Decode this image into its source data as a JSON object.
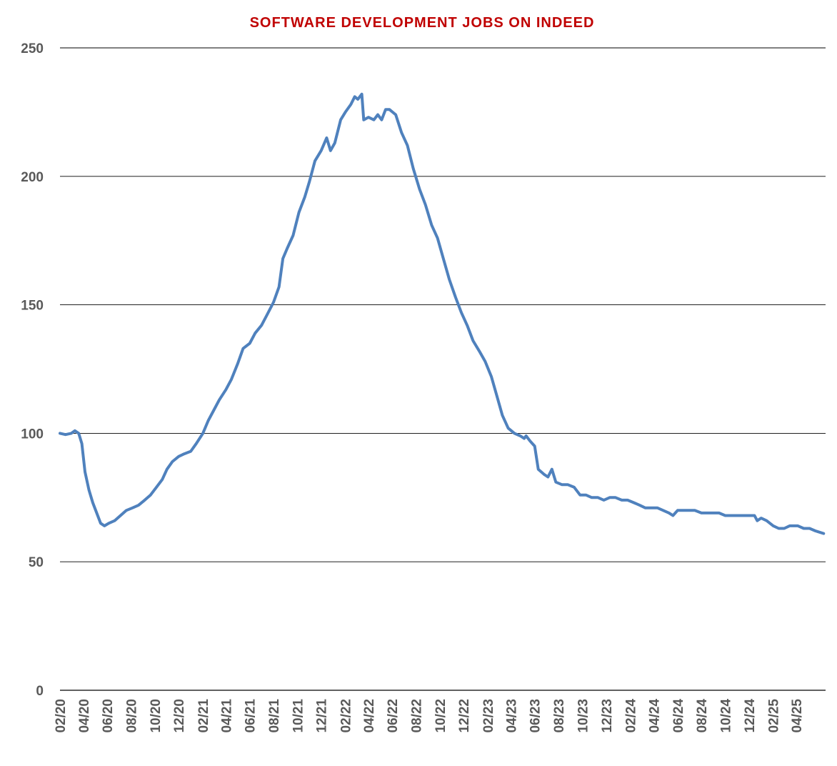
{
  "chart_data": {
    "type": "line",
    "title": "SOFTWARE DEVELOPMENT JOBS ON INDEED",
    "title_color": "#C00000",
    "line_color": "#4F81BD",
    "grid": true,
    "legend": "none",
    "ylim": [
      0,
      250
    ],
    "yticks": [
      0,
      50,
      100,
      150,
      200,
      250
    ],
    "xlim": [
      "2020-02-01",
      "2025-06-15"
    ],
    "xtick_labels": [
      "02/20",
      "04/20",
      "06/20",
      "08/20",
      "10/20",
      "12/20",
      "02/21",
      "04/21",
      "06/21",
      "08/21",
      "10/21",
      "12/21",
      "02/22",
      "04/22",
      "06/22",
      "08/22",
      "10/22",
      "12/22",
      "02/23",
      "04/23",
      "06/23",
      "08/23",
      "10/23",
      "12/23",
      "02/24",
      "04/24",
      "06/24",
      "08/24",
      "10/24",
      "12/24",
      "02/25",
      "04/25"
    ],
    "xtick_dates": [
      "2020-02-01",
      "2020-04-01",
      "2020-06-01",
      "2020-08-01",
      "2020-10-01",
      "2020-12-01",
      "2021-02-01",
      "2021-04-01",
      "2021-06-01",
      "2021-08-01",
      "2021-10-01",
      "2021-12-01",
      "2022-02-01",
      "2022-04-01",
      "2022-06-01",
      "2022-08-01",
      "2022-10-01",
      "2022-12-01",
      "2023-02-01",
      "2023-04-01",
      "2023-06-01",
      "2023-08-01",
      "2023-10-01",
      "2023-12-01",
      "2024-02-01",
      "2024-04-01",
      "2024-06-01",
      "2024-08-01",
      "2024-10-01",
      "2024-12-01",
      "2025-02-01",
      "2025-04-01"
    ],
    "series": [
      {
        "points": [
          [
            "2020-02-01",
            100
          ],
          [
            "2020-02-15",
            99.5
          ],
          [
            "2020-03-01",
            100
          ],
          [
            "2020-03-10",
            101
          ],
          [
            "2020-03-20",
            100
          ],
          [
            "2020-03-28",
            96
          ],
          [
            "2020-04-05",
            85
          ],
          [
            "2020-04-15",
            78
          ],
          [
            "2020-04-25",
            73
          ],
          [
            "2020-05-05",
            69
          ],
          [
            "2020-05-15",
            65
          ],
          [
            "2020-05-25",
            64
          ],
          [
            "2020-06-05",
            65
          ],
          [
            "2020-06-20",
            66
          ],
          [
            "2020-07-05",
            68
          ],
          [
            "2020-07-20",
            70
          ],
          [
            "2020-08-05",
            71
          ],
          [
            "2020-08-20",
            72
          ],
          [
            "2020-09-05",
            74
          ],
          [
            "2020-09-20",
            76
          ],
          [
            "2020-10-05",
            79
          ],
          [
            "2020-10-20",
            82
          ],
          [
            "2020-11-01",
            86
          ],
          [
            "2020-11-15",
            89
          ],
          [
            "2020-12-01",
            91
          ],
          [
            "2020-12-15",
            92
          ],
          [
            "2021-01-01",
            93
          ],
          [
            "2021-01-15",
            96
          ],
          [
            "2021-02-01",
            100
          ],
          [
            "2021-02-15",
            105
          ],
          [
            "2021-03-01",
            109
          ],
          [
            "2021-03-15",
            113
          ],
          [
            "2021-04-01",
            117
          ],
          [
            "2021-04-15",
            121
          ],
          [
            "2021-05-01",
            127
          ],
          [
            "2021-05-15",
            133
          ],
          [
            "2021-06-01",
            135
          ],
          [
            "2021-06-15",
            139
          ],
          [
            "2021-07-01",
            142
          ],
          [
            "2021-07-15",
            146
          ],
          [
            "2021-08-01",
            151
          ],
          [
            "2021-08-15",
            157
          ],
          [
            "2021-08-25",
            168
          ],
          [
            "2021-09-05",
            172
          ],
          [
            "2021-09-20",
            177
          ],
          [
            "2021-10-05",
            186
          ],
          [
            "2021-10-20",
            192
          ],
          [
            "2021-11-01",
            198
          ],
          [
            "2021-11-15",
            206
          ],
          [
            "2021-12-01",
            210
          ],
          [
            "2021-12-15",
            215
          ],
          [
            "2021-12-25",
            210
          ],
          [
            "2022-01-05",
            213
          ],
          [
            "2022-01-20",
            222
          ],
          [
            "2022-02-01",
            225
          ],
          [
            "2022-02-15",
            228
          ],
          [
            "2022-02-25",
            231
          ],
          [
            "2022-03-05",
            230
          ],
          [
            "2022-03-15",
            232
          ],
          [
            "2022-03-20",
            222
          ],
          [
            "2022-04-01",
            223
          ],
          [
            "2022-04-15",
            222
          ],
          [
            "2022-04-25",
            224
          ],
          [
            "2022-05-05",
            222
          ],
          [
            "2022-05-15",
            226
          ],
          [
            "2022-05-25",
            226
          ],
          [
            "2022-06-10",
            224
          ],
          [
            "2022-06-25",
            217
          ],
          [
            "2022-07-10",
            212
          ],
          [
            "2022-07-25",
            203
          ],
          [
            "2022-08-10",
            195
          ],
          [
            "2022-08-25",
            189
          ],
          [
            "2022-09-10",
            181
          ],
          [
            "2022-09-25",
            176
          ],
          [
            "2022-10-10",
            168
          ],
          [
            "2022-10-25",
            160
          ],
          [
            "2022-11-10",
            153
          ],
          [
            "2022-11-25",
            147
          ],
          [
            "2022-12-10",
            142
          ],
          [
            "2022-12-25",
            136
          ],
          [
            "2023-01-10",
            132
          ],
          [
            "2023-01-25",
            128
          ],
          [
            "2023-02-10",
            122
          ],
          [
            "2023-02-25",
            114
          ],
          [
            "2023-03-10",
            107
          ],
          [
            "2023-03-25",
            102
          ],
          [
            "2023-04-10",
            100
          ],
          [
            "2023-04-25",
            99
          ],
          [
            "2023-05-05",
            98
          ],
          [
            "2023-05-10",
            99
          ],
          [
            "2023-05-20",
            97
          ],
          [
            "2023-06-01",
            95
          ],
          [
            "2023-06-10",
            86
          ],
          [
            "2023-06-25",
            84
          ],
          [
            "2023-07-05",
            83
          ],
          [
            "2023-07-15",
            86
          ],
          [
            "2023-07-25",
            81
          ],
          [
            "2023-08-10",
            80
          ],
          [
            "2023-08-25",
            80
          ],
          [
            "2023-09-10",
            79
          ],
          [
            "2023-09-25",
            76
          ],
          [
            "2023-10-10",
            76
          ],
          [
            "2023-10-25",
            75
          ],
          [
            "2023-11-10",
            75
          ],
          [
            "2023-11-25",
            74
          ],
          [
            "2023-12-10",
            75
          ],
          [
            "2023-12-25",
            75
          ],
          [
            "2024-01-10",
            74
          ],
          [
            "2024-01-25",
            74
          ],
          [
            "2024-02-10",
            73
          ],
          [
            "2024-02-25",
            72
          ],
          [
            "2024-03-10",
            71
          ],
          [
            "2024-03-25",
            71
          ],
          [
            "2024-04-10",
            71
          ],
          [
            "2024-04-25",
            70
          ],
          [
            "2024-05-10",
            69
          ],
          [
            "2024-05-20",
            68
          ],
          [
            "2024-06-01",
            70
          ],
          [
            "2024-06-15",
            70
          ],
          [
            "2024-07-01",
            70
          ],
          [
            "2024-07-15",
            70
          ],
          [
            "2024-08-01",
            69
          ],
          [
            "2024-08-15",
            69
          ],
          [
            "2024-09-01",
            69
          ],
          [
            "2024-09-15",
            69
          ],
          [
            "2024-10-01",
            68
          ],
          [
            "2024-10-15",
            68
          ],
          [
            "2024-11-01",
            68
          ],
          [
            "2024-11-15",
            68
          ],
          [
            "2024-12-01",
            68
          ],
          [
            "2024-12-15",
            68
          ],
          [
            "2024-12-22",
            66
          ],
          [
            "2025-01-01",
            67
          ],
          [
            "2025-01-15",
            66
          ],
          [
            "2025-02-01",
            64
          ],
          [
            "2025-02-15",
            63
          ],
          [
            "2025-03-01",
            63
          ],
          [
            "2025-03-15",
            64
          ],
          [
            "2025-03-25",
            64
          ],
          [
            "2025-04-05",
            64
          ],
          [
            "2025-04-20",
            63
          ],
          [
            "2025-05-05",
            63
          ],
          [
            "2025-05-20",
            62
          ],
          [
            "2025-06-10",
            61
          ]
        ]
      }
    ]
  }
}
